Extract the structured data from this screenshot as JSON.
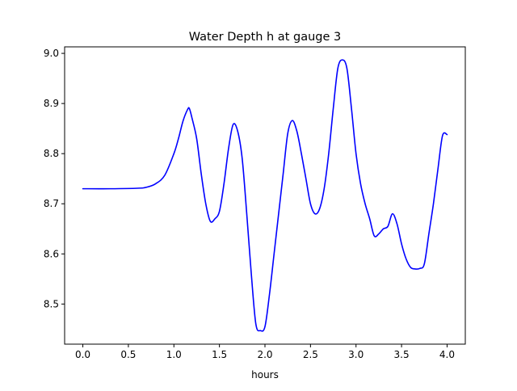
{
  "chart_data": {
    "type": "line",
    "title": "Water Depth h at gauge 3",
    "xlabel": "hours",
    "ylabel": "",
    "xlim": [
      -0.2,
      4.2
    ],
    "ylim": [
      8.42,
      9.013
    ],
    "xticks": [
      0.0,
      0.5,
      1.0,
      1.5,
      2.0,
      2.5,
      3.0,
      3.5,
      4.0
    ],
    "xtick_labels": [
      "0.0",
      "0.5",
      "1.0",
      "1.5",
      "2.0",
      "2.5",
      "3.0",
      "3.5",
      "4.0"
    ],
    "yticks": [
      8.5,
      8.6,
      8.7,
      8.8,
      8.9,
      9.0
    ],
    "ytick_labels": [
      "8.5",
      "8.6",
      "8.7",
      "8.8",
      "8.9",
      "9.0"
    ],
    "grid": false,
    "legend": "none",
    "series": [
      {
        "color": "#0000ff",
        "x": [
          0.0,
          0.3,
          0.6,
          0.7,
          0.8,
          0.9,
          1.0,
          1.05,
          1.1,
          1.15,
          1.17,
          1.2,
          1.25,
          1.3,
          1.35,
          1.4,
          1.45,
          1.5,
          1.55,
          1.6,
          1.65,
          1.7,
          1.75,
          1.8,
          1.85,
          1.9,
          1.95,
          2.0,
          2.05,
          2.1,
          2.15,
          2.2,
          2.25,
          2.3,
          2.35,
          2.4,
          2.45,
          2.5,
          2.55,
          2.6,
          2.65,
          2.7,
          2.75,
          2.8,
          2.85,
          2.9,
          2.95,
          3.0,
          3.05,
          3.1,
          3.15,
          3.2,
          3.25,
          3.3,
          3.35,
          3.4,
          3.45,
          3.5,
          3.55,
          3.6,
          3.65,
          3.7,
          3.75,
          3.8,
          3.85,
          3.9,
          3.95,
          4.0
        ],
        "y": [
          8.73,
          8.73,
          8.731,
          8.733,
          8.74,
          8.757,
          8.8,
          8.83,
          8.865,
          8.888,
          8.89,
          8.87,
          8.83,
          8.76,
          8.7,
          8.665,
          8.67,
          8.685,
          8.74,
          8.81,
          8.858,
          8.845,
          8.79,
          8.68,
          8.56,
          8.46,
          8.447,
          8.455,
          8.52,
          8.6,
          8.68,
          8.76,
          8.84,
          8.866,
          8.845,
          8.8,
          8.75,
          8.7,
          8.68,
          8.69,
          8.73,
          8.8,
          8.89,
          8.97,
          8.987,
          8.97,
          8.89,
          8.8,
          8.74,
          8.7,
          8.67,
          8.636,
          8.64,
          8.65,
          8.655,
          8.68,
          8.66,
          8.62,
          8.59,
          8.573,
          8.57,
          8.571,
          8.58,
          8.64,
          8.7,
          8.77,
          8.836,
          8.838
        ]
      }
    ]
  }
}
